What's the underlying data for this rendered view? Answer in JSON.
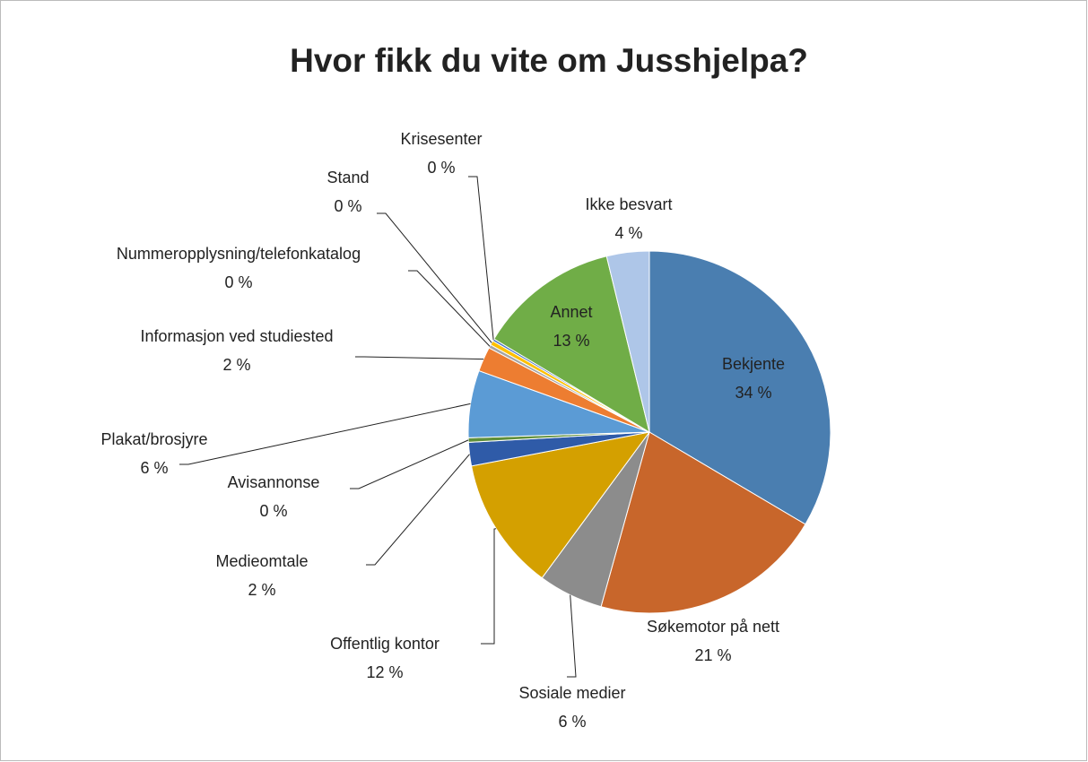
{
  "chart_data": {
    "type": "pie",
    "title": "Hvor fikk du vite om Jusshjelpa?",
    "categories": [
      "Bekjente",
      "Søkemotor på nett",
      "Sosiale medier",
      "Offentlig kontor",
      "Medieomtale",
      "Avisannonse",
      "Plakat/brosjyre",
      "Informasjon ved studiested",
      "Nummeropplysning/telefonkatalog",
      "Stand",
      "Krisesenter",
      "Annet",
      "Ikke besvart"
    ],
    "values": [
      33.5,
      20.8,
      5.8,
      11.9,
      2.1,
      0.4,
      6.0,
      2.2,
      0.3,
      0.4,
      0.2,
      12.6,
      3.8
    ],
    "value_labels": [
      "34 %",
      "21 %",
      "6 %",
      "12 %",
      "2 %",
      "0 %",
      "6 %",
      "2 %",
      "0 %",
      "0 %",
      "0 %",
      "13 %",
      "4 %"
    ],
    "colors": [
      "#4a7eb0",
      "#c8662b",
      "#8c8c8c",
      "#d4a000",
      "#2f5ba8",
      "#5f8f3a",
      "#5b9bd5",
      "#ed7d31",
      "#a5a5a5",
      "#ffc000",
      "#4472c4",
      "#70ad47",
      "#aec6e8"
    ]
  }
}
